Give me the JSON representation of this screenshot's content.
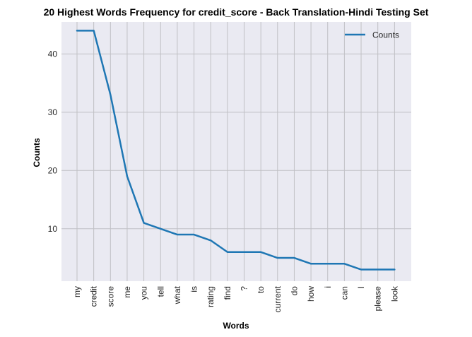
{
  "chart_data": {
    "type": "line",
    "title": "20 Highest Words Frequency for credit_score - Back Translation-Hindi Testing Set",
    "xlabel": "Words",
    "ylabel": "Counts",
    "categories": [
      "my",
      "credit",
      "score",
      "me",
      "you",
      "tell",
      "what",
      "is",
      "rating",
      "find",
      "?",
      "to",
      "current",
      "do",
      "how",
      "i",
      "can",
      "I",
      "please",
      "look"
    ],
    "series": [
      {
        "name": "Counts",
        "color": "#1f77b4",
        "values": [
          44,
          44,
          33,
          19,
          11,
          10,
          9,
          9,
          8,
          6,
          6,
          6,
          5,
          5,
          4,
          4,
          4,
          3,
          3,
          3
        ]
      }
    ],
    "yticks": [
      10,
      20,
      30,
      40
    ],
    "ylim": [
      1,
      45.5
    ],
    "grid": true,
    "legend": "top-right",
    "background": "#eaeaf2",
    "grid_color": "#c0c0c4"
  }
}
